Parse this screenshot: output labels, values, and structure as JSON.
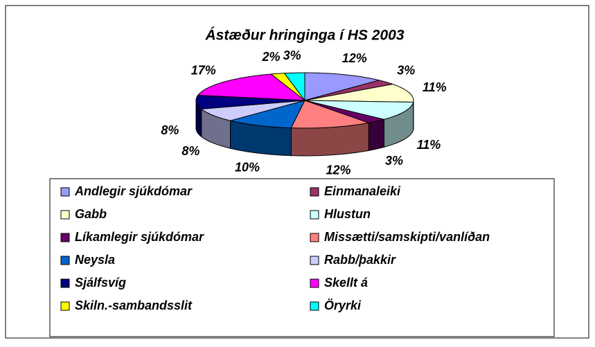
{
  "chart_data": {
    "type": "pie3d",
    "title": "Ástæður hringinga í HS 2003",
    "categories": [
      "Andlegir sjúkdómar",
      "Einmanaleiki",
      "Gabb",
      "Hlustun",
      "Líkamlegir sjúkdómar",
      "Missætti/samskipti/vanlíðan",
      "Neysla",
      "Rabb/þakkir",
      "Sjálfsvíg",
      "Skellt á",
      "Skiln.-sambandsslit",
      "Öryrki"
    ],
    "values": [
      12,
      3,
      11,
      11,
      3,
      12,
      10,
      8,
      8,
      17,
      2,
      3
    ],
    "value_labels": [
      "12%",
      "3%",
      "11%",
      "11%",
      "3%",
      "12%",
      "10%",
      "8%",
      "8%",
      "17%",
      "2%",
      "3%"
    ],
    "colors": [
      "#9999ff",
      "#993366",
      "#ffffcc",
      "#ccffff",
      "#660066",
      "#ff8080",
      "#0066cc",
      "#ccccff",
      "#000080",
      "#ff00ff",
      "#ffff00",
      "#00ffff"
    ],
    "legend": "bottom"
  }
}
